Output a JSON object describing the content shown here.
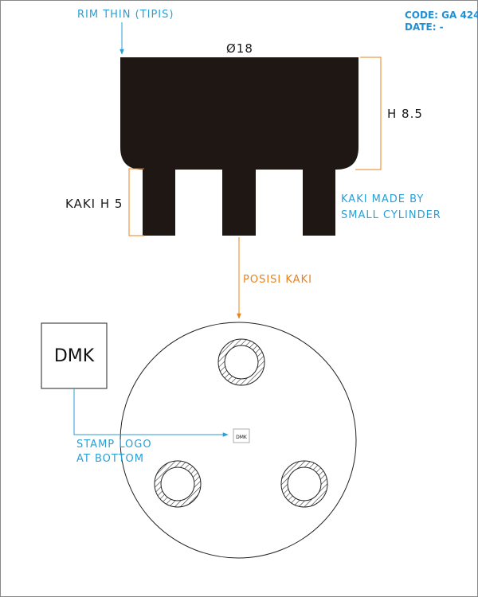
{
  "header": {
    "code": "CODE: GA 424",
    "date": "DATE: -"
  },
  "annotations": {
    "rim": "RIM THIN (TIPIS)",
    "diameter": "Ø18",
    "height_body": "H 8.5",
    "leg_height": "KAKI H 5",
    "leg_note_line1": "KAKI MADE BY",
    "leg_note_line2": "SMALL CYLINDER",
    "leg_position": "POSISI KAKI",
    "stamp_line1": "STAMP LOGO",
    "stamp_line2": "AT BOTTOM"
  },
  "logo": {
    "text": "DMK",
    "small_text": "DMK"
  },
  "colors": {
    "body": "#1f1714",
    "callout_blue": "#2a9fd6",
    "callout_orange": "#e8821e",
    "outline": "#222222"
  },
  "icons": {
    "diameter": "diameter-symbol-icon",
    "arrow": "arrow-down-icon"
  }
}
